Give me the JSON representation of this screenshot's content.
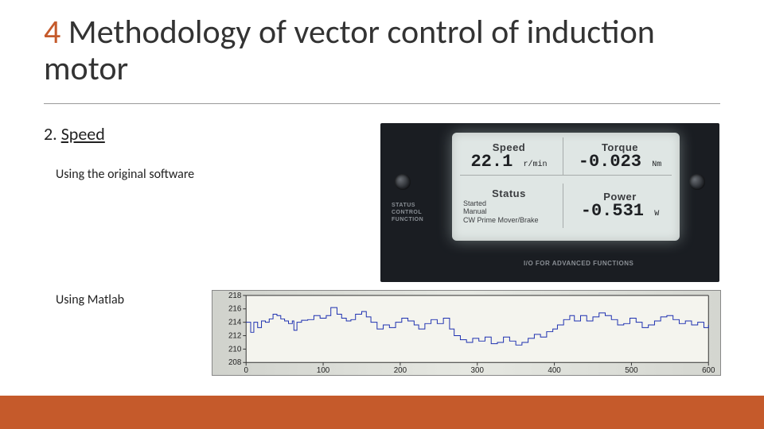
{
  "title": {
    "num": "4",
    "text": "Methodology of vector control of induction motor"
  },
  "subhead": {
    "num": "2. ",
    "text": "Speed"
  },
  "captions": {
    "original": "Using the original software",
    "matlab": "Using Matlab"
  },
  "lcd": {
    "bg_color": "#dfe6e4",
    "speed": {
      "label": "Speed",
      "value": "22.1",
      "unit": "r/min"
    },
    "torque": {
      "label": "Torque",
      "value": "-0.023",
      "unit": "Nm"
    },
    "status": {
      "label": "Status",
      "lines": [
        "Started",
        "Manual",
        "CW Prime Mover/Brake"
      ]
    },
    "power": {
      "label": "Power",
      "value": "-0.531",
      "unit": "W"
    },
    "side_labels": [
      "STATUS",
      "CONTROL",
      "FUNCTION"
    ],
    "io_label": "I/O FOR ADVANCED FUNCTIONS"
  },
  "matlab_chart": {
    "type": "line",
    "yticks": [
      208,
      210,
      212,
      214,
      216,
      218
    ],
    "xticks": [
      0,
      100,
      200,
      300,
      400,
      500,
      600
    ],
    "xlim": [
      0,
      600
    ],
    "ylim": [
      208,
      218
    ],
    "bg": "#f4f4ee",
    "line_color": "#1c2fb0",
    "data": [
      [
        0,
        214
      ],
      [
        6,
        212.5
      ],
      [
        10,
        214
      ],
      [
        15,
        213.2
      ],
      [
        20,
        214.2
      ],
      [
        25,
        214
      ],
      [
        30,
        214.5
      ],
      [
        35,
        215.2
      ],
      [
        40,
        215
      ],
      [
        45,
        214.5
      ],
      [
        50,
        214.2
      ],
      [
        55,
        213.8
      ],
      [
        60,
        214.2
      ],
      [
        62,
        212.8
      ],
      [
        66,
        214
      ],
      [
        72,
        214.3
      ],
      [
        80,
        214.4
      ],
      [
        88,
        215
      ],
      [
        96,
        214.6
      ],
      [
        104,
        215
      ],
      [
        110,
        216.2
      ],
      [
        118,
        215.2
      ],
      [
        124,
        214.6
      ],
      [
        130,
        214.2
      ],
      [
        136,
        214.4
      ],
      [
        142,
        215.2
      ],
      [
        150,
        215.6
      ],
      [
        156,
        214.8
      ],
      [
        162,
        214
      ],
      [
        170,
        213
      ],
      [
        178,
        213.6
      ],
      [
        186,
        213.2
      ],
      [
        194,
        214
      ],
      [
        202,
        214.6
      ],
      [
        210,
        214.2
      ],
      [
        218,
        213.6
      ],
      [
        224,
        213
      ],
      [
        232,
        213.8
      ],
      [
        240,
        214.4
      ],
      [
        248,
        213.8
      ],
      [
        256,
        214.6
      ],
      [
        264,
        213
      ],
      [
        270,
        212
      ],
      [
        278,
        211.4
      ],
      [
        286,
        211
      ],
      [
        294,
        211.6
      ],
      [
        302,
        211.2
      ],
      [
        310,
        211.8
      ],
      [
        318,
        210.8
      ],
      [
        326,
        211
      ],
      [
        334,
        211.8
      ],
      [
        342,
        211.2
      ],
      [
        350,
        210.6
      ],
      [
        358,
        211
      ],
      [
        366,
        211.6
      ],
      [
        374,
        212.2
      ],
      [
        382,
        211.8
      ],
      [
        390,
        212.6
      ],
      [
        398,
        213
      ],
      [
        404,
        213.6
      ],
      [
        412,
        214.4
      ],
      [
        420,
        215
      ],
      [
        426,
        214.2
      ],
      [
        434,
        215
      ],
      [
        442,
        214.2
      ],
      [
        450,
        214.8
      ],
      [
        458,
        215.4
      ],
      [
        466,
        215
      ],
      [
        474,
        214.4
      ],
      [
        482,
        213.6
      ],
      [
        490,
        213.8
      ],
      [
        498,
        214.6
      ],
      [
        506,
        214
      ],
      [
        514,
        213.2
      ],
      [
        522,
        213.6
      ],
      [
        530,
        214.2
      ],
      [
        538,
        214.8
      ],
      [
        546,
        215
      ],
      [
        554,
        214.4
      ],
      [
        562,
        213.8
      ],
      [
        570,
        214.2
      ],
      [
        578,
        213.6
      ],
      [
        586,
        214
      ],
      [
        594,
        213.2
      ],
      [
        600,
        213.6
      ]
    ]
  },
  "colors": {
    "accent": "#c55a2b"
  }
}
